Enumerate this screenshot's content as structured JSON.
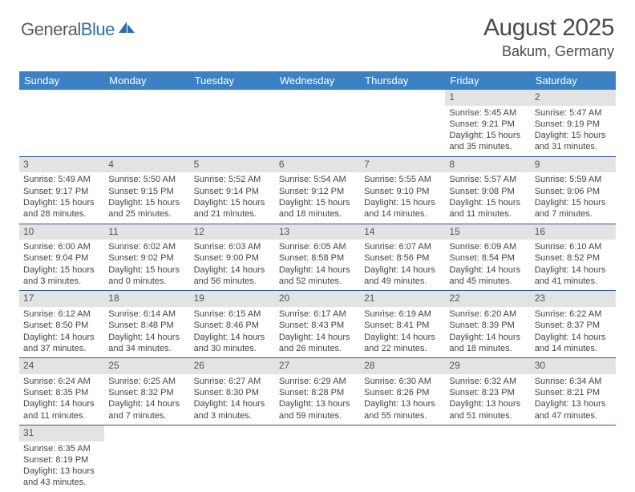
{
  "logo": {
    "word1": "General",
    "word2": "Blue"
  },
  "title": "August 2025",
  "location": "Bakum, Germany",
  "colors": {
    "header_bg": "#3b82c4",
    "header_text": "#ffffff",
    "daynum_bg": "#e3e3e3",
    "cell_border": "#2b5a8a",
    "logo_gray": "#5a5a5a",
    "logo_blue": "#2f6fa7"
  },
  "weekdays": [
    "Sunday",
    "Monday",
    "Tuesday",
    "Wednesday",
    "Thursday",
    "Friday",
    "Saturday"
  ],
  "weeks": [
    [
      null,
      null,
      null,
      null,
      null,
      {
        "n": "1",
        "sr": "Sunrise: 5:45 AM",
        "ss": "Sunset: 9:21 PM",
        "d1": "Daylight: 15 hours",
        "d2": "and 35 minutes."
      },
      {
        "n": "2",
        "sr": "Sunrise: 5:47 AM",
        "ss": "Sunset: 9:19 PM",
        "d1": "Daylight: 15 hours",
        "d2": "and 31 minutes."
      }
    ],
    [
      {
        "n": "3",
        "sr": "Sunrise: 5:49 AM",
        "ss": "Sunset: 9:17 PM",
        "d1": "Daylight: 15 hours",
        "d2": "and 28 minutes."
      },
      {
        "n": "4",
        "sr": "Sunrise: 5:50 AM",
        "ss": "Sunset: 9:15 PM",
        "d1": "Daylight: 15 hours",
        "d2": "and 25 minutes."
      },
      {
        "n": "5",
        "sr": "Sunrise: 5:52 AM",
        "ss": "Sunset: 9:14 PM",
        "d1": "Daylight: 15 hours",
        "d2": "and 21 minutes."
      },
      {
        "n": "6",
        "sr": "Sunrise: 5:54 AM",
        "ss": "Sunset: 9:12 PM",
        "d1": "Daylight: 15 hours",
        "d2": "and 18 minutes."
      },
      {
        "n": "7",
        "sr": "Sunrise: 5:55 AM",
        "ss": "Sunset: 9:10 PM",
        "d1": "Daylight: 15 hours",
        "d2": "and 14 minutes."
      },
      {
        "n": "8",
        "sr": "Sunrise: 5:57 AM",
        "ss": "Sunset: 9:08 PM",
        "d1": "Daylight: 15 hours",
        "d2": "and 11 minutes."
      },
      {
        "n": "9",
        "sr": "Sunrise: 5:59 AM",
        "ss": "Sunset: 9:06 PM",
        "d1": "Daylight: 15 hours",
        "d2": "and 7 minutes."
      }
    ],
    [
      {
        "n": "10",
        "sr": "Sunrise: 6:00 AM",
        "ss": "Sunset: 9:04 PM",
        "d1": "Daylight: 15 hours",
        "d2": "and 3 minutes."
      },
      {
        "n": "11",
        "sr": "Sunrise: 6:02 AM",
        "ss": "Sunset: 9:02 PM",
        "d1": "Daylight: 15 hours",
        "d2": "and 0 minutes."
      },
      {
        "n": "12",
        "sr": "Sunrise: 6:03 AM",
        "ss": "Sunset: 9:00 PM",
        "d1": "Daylight: 14 hours",
        "d2": "and 56 minutes."
      },
      {
        "n": "13",
        "sr": "Sunrise: 6:05 AM",
        "ss": "Sunset: 8:58 PM",
        "d1": "Daylight: 14 hours",
        "d2": "and 52 minutes."
      },
      {
        "n": "14",
        "sr": "Sunrise: 6:07 AM",
        "ss": "Sunset: 8:56 PM",
        "d1": "Daylight: 14 hours",
        "d2": "and 49 minutes."
      },
      {
        "n": "15",
        "sr": "Sunrise: 6:09 AM",
        "ss": "Sunset: 8:54 PM",
        "d1": "Daylight: 14 hours",
        "d2": "and 45 minutes."
      },
      {
        "n": "16",
        "sr": "Sunrise: 6:10 AM",
        "ss": "Sunset: 8:52 PM",
        "d1": "Daylight: 14 hours",
        "d2": "and 41 minutes."
      }
    ],
    [
      {
        "n": "17",
        "sr": "Sunrise: 6:12 AM",
        "ss": "Sunset: 8:50 PM",
        "d1": "Daylight: 14 hours",
        "d2": "and 37 minutes."
      },
      {
        "n": "18",
        "sr": "Sunrise: 6:14 AM",
        "ss": "Sunset: 8:48 PM",
        "d1": "Daylight: 14 hours",
        "d2": "and 34 minutes."
      },
      {
        "n": "19",
        "sr": "Sunrise: 6:15 AM",
        "ss": "Sunset: 8:46 PM",
        "d1": "Daylight: 14 hours",
        "d2": "and 30 minutes."
      },
      {
        "n": "20",
        "sr": "Sunrise: 6:17 AM",
        "ss": "Sunset: 8:43 PM",
        "d1": "Daylight: 14 hours",
        "d2": "and 26 minutes."
      },
      {
        "n": "21",
        "sr": "Sunrise: 6:19 AM",
        "ss": "Sunset: 8:41 PM",
        "d1": "Daylight: 14 hours",
        "d2": "and 22 minutes."
      },
      {
        "n": "22",
        "sr": "Sunrise: 6:20 AM",
        "ss": "Sunset: 8:39 PM",
        "d1": "Daylight: 14 hours",
        "d2": "and 18 minutes."
      },
      {
        "n": "23",
        "sr": "Sunrise: 6:22 AM",
        "ss": "Sunset: 8:37 PM",
        "d1": "Daylight: 14 hours",
        "d2": "and 14 minutes."
      }
    ],
    [
      {
        "n": "24",
        "sr": "Sunrise: 6:24 AM",
        "ss": "Sunset: 8:35 PM",
        "d1": "Daylight: 14 hours",
        "d2": "and 11 minutes."
      },
      {
        "n": "25",
        "sr": "Sunrise: 6:25 AM",
        "ss": "Sunset: 8:32 PM",
        "d1": "Daylight: 14 hours",
        "d2": "and 7 minutes."
      },
      {
        "n": "26",
        "sr": "Sunrise: 6:27 AM",
        "ss": "Sunset: 8:30 PM",
        "d1": "Daylight: 14 hours",
        "d2": "and 3 minutes."
      },
      {
        "n": "27",
        "sr": "Sunrise: 6:29 AM",
        "ss": "Sunset: 8:28 PM",
        "d1": "Daylight: 13 hours",
        "d2": "and 59 minutes."
      },
      {
        "n": "28",
        "sr": "Sunrise: 6:30 AM",
        "ss": "Sunset: 8:26 PM",
        "d1": "Daylight: 13 hours",
        "d2": "and 55 minutes."
      },
      {
        "n": "29",
        "sr": "Sunrise: 6:32 AM",
        "ss": "Sunset: 8:23 PM",
        "d1": "Daylight: 13 hours",
        "d2": "and 51 minutes."
      },
      {
        "n": "30",
        "sr": "Sunrise: 6:34 AM",
        "ss": "Sunset: 8:21 PM",
        "d1": "Daylight: 13 hours",
        "d2": "and 47 minutes."
      }
    ],
    [
      {
        "n": "31",
        "sr": "Sunrise: 6:35 AM",
        "ss": "Sunset: 8:19 PM",
        "d1": "Daylight: 13 hours",
        "d2": "and 43 minutes."
      },
      null,
      null,
      null,
      null,
      null,
      null
    ]
  ]
}
